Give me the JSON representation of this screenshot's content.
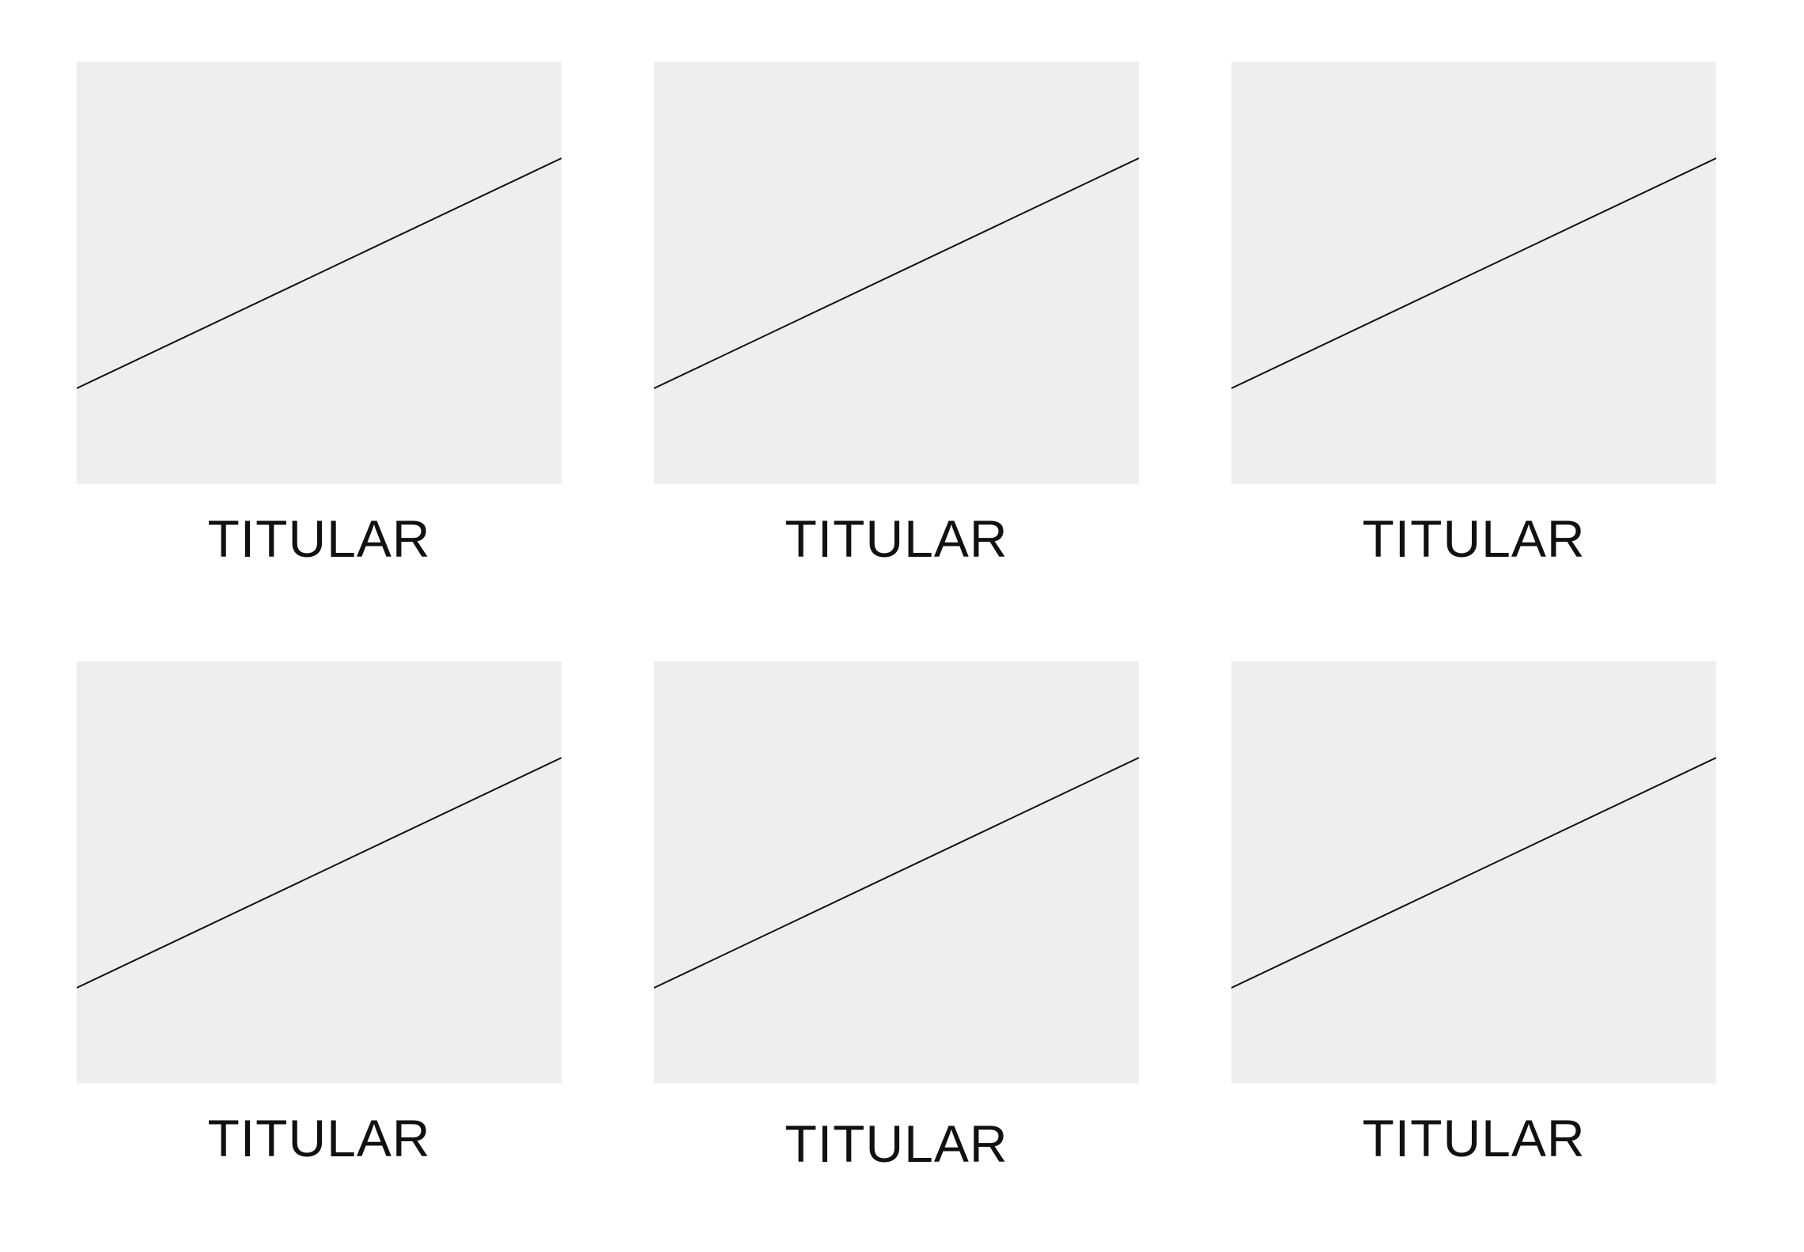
{
  "cards": [
    {
      "caption": "TITULAR",
      "image_icon": "image-placeholder-icon"
    },
    {
      "caption": "TITULAR",
      "image_icon": "image-placeholder-icon"
    },
    {
      "caption": "TITULAR",
      "image_icon": "image-placeholder-icon"
    },
    {
      "caption": "TITULAR",
      "image_icon": "image-placeholder-icon"
    },
    {
      "caption": "TITULAR",
      "image_icon": "image-placeholder-icon"
    },
    {
      "caption": "TITULAR",
      "image_icon": "image-placeholder-icon"
    }
  ],
  "colors": {
    "background": "#ffffff",
    "placeholder_fill": "#eeeeee",
    "line": "#111111",
    "text": "#111111"
  }
}
